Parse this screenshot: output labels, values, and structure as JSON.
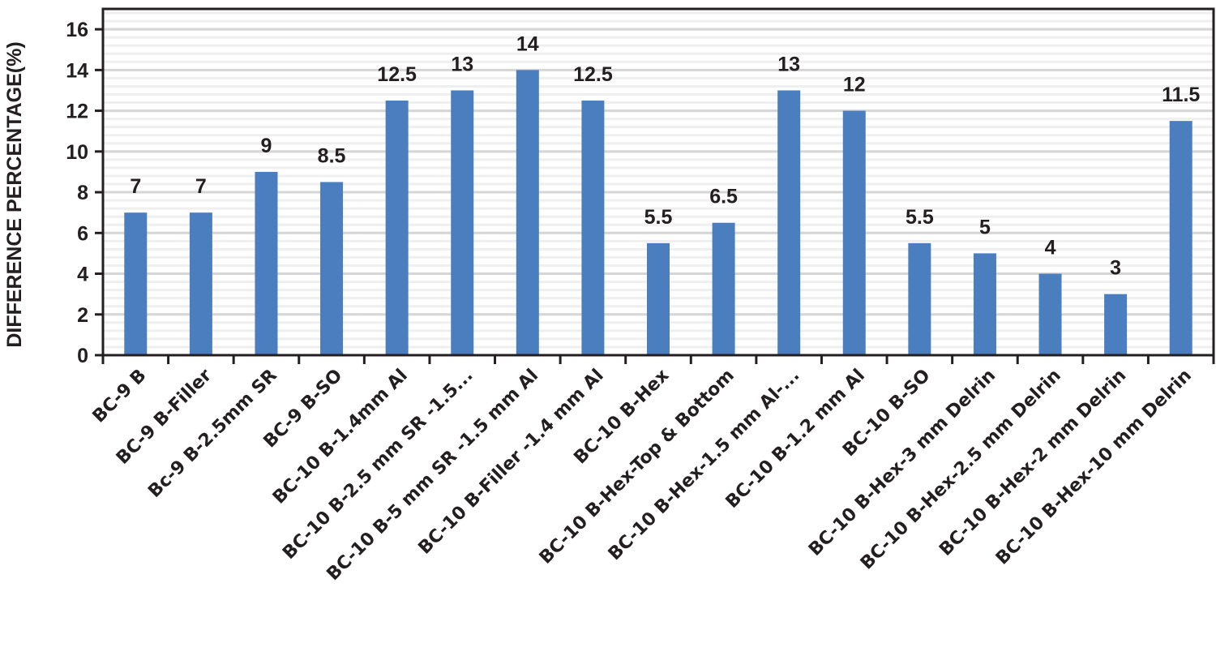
{
  "chart_data": {
    "type": "bar",
    "title": "",
    "xlabel": "",
    "ylabel": "DIFFERENCE PERCENTAGE(%)",
    "ylim": [
      0,
      17
    ],
    "yticks": [
      0,
      2,
      4,
      6,
      8,
      10,
      12,
      14,
      16
    ],
    "minor_grid_step": 0.4,
    "grid": true,
    "legend": "none",
    "bar_color": "#4a7ebf",
    "categories": [
      "BC-9 B",
      "BC-9 B-Filler",
      "Bc-9 B-2.5mm SR",
      "BC-9 B-SO",
      "BC-10 B-1.4mm Al",
      "BC-10 B-2.5 mm SR -1.5...",
      "BC-10 B-5 mm SR -1.5 mm Al",
      "BC-10 B-Filler -1.4 mm Al",
      "BC-10 B-Hex",
      "BC-10 B-Hex-Top & Bottom",
      "BC-10 B-Hex-1.5 mm Al-...",
      "BC-10 B-1.2 mm Al",
      "BC-10 B-SO",
      "BC-10 B-Hex-3 mm Delrin",
      "BC-10 B-Hex-2.5 mm Delrin",
      "BC-10 B-Hex-2 mm Delrin",
      "BC-10 B-Hex-10 mm Delrin"
    ],
    "values": [
      7,
      7,
      9,
      8.5,
      12.5,
      13,
      14,
      12.5,
      5.5,
      6.5,
      13,
      12,
      5.5,
      5,
      4,
      3,
      11.5
    ],
    "value_labels": [
      "7",
      "7",
      "9",
      "8.5",
      "12.5",
      "13",
      "14",
      "12.5",
      "5.5",
      "6.5",
      "13",
      "12",
      "5.5",
      "5",
      "4",
      "3",
      "11.5"
    ]
  }
}
